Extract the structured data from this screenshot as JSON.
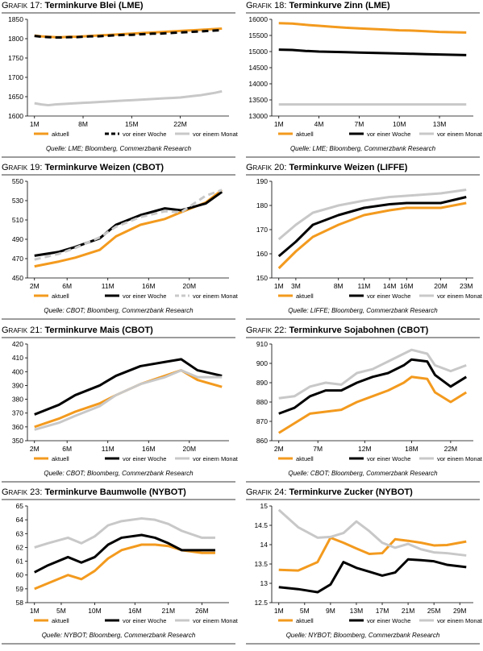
{
  "panels": [
    {
      "label": "Grafik 17:",
      "title": "Terminkurve Blei (LME)",
      "source": "Quelle: LME; Bloomberg, Commerzbank Research",
      "chart_data": {
        "type": "line",
        "ylim": [
          1600,
          1850
        ],
        "yticks": [
          1600,
          1650,
          1700,
          1750,
          1800,
          1850
        ],
        "xlim": [
          0,
          27
        ],
        "xticks": [
          0,
          7,
          14,
          21
        ],
        "xticklabels": [
          "1M",
          "8M",
          "15M",
          "22M"
        ],
        "x": [
          0,
          1,
          2,
          3,
          4,
          5,
          6,
          7,
          8,
          9,
          10,
          11,
          12,
          13,
          14,
          15,
          16,
          17,
          18,
          19,
          20,
          21,
          22,
          23,
          24,
          25,
          26,
          27
        ],
        "series": [
          {
            "name": "aktuell",
            "color": "#f39a1e",
            "dash": "none",
            "values": [
              1808,
              1806,
              1805,
              1804,
              1804,
              1805,
              1805,
              1806,
              1807,
              1808,
              1809,
              1810,
              1811,
              1812,
              1813,
              1814,
              1815,
              1816,
              1817,
              1818,
              1819,
              1820,
              1821,
              1822,
              1823,
              1824,
              1825,
              1826
            ]
          },
          {
            "name": "vor einer Woche",
            "color": "#000000",
            "dash": "8,5",
            "values": [
              1807,
              1805,
              1804,
              1803,
              1803,
              1804,
              1804,
              1805,
              1806,
              1806,
              1807,
              1808,
              1809,
              1810,
              1810,
              1811,
              1812,
              1813,
              1813,
              1814,
              1815,
              1816,
              1817,
              1818,
              1819,
              1820,
              1821,
              1822
            ]
          },
          {
            "name": "vor einem Monat",
            "color": "#c8c8c8",
            "dash": "none",
            "values": [
              1633,
              1630,
              1628,
              1630,
              1631,
              1632,
              1633,
              1634,
              1635,
              1636,
              1637,
              1638,
              1639,
              1640,
              1641,
              1642,
              1643,
              1644,
              1645,
              1646,
              1647,
              1648,
              1650,
              1652,
              1654,
              1657,
              1660,
              1664
            ]
          }
        ]
      }
    },
    {
      "label": "Grafik 18:",
      "title": "Terminkurve Zinn (LME)",
      "source": "Quelle: LME; Bloomberg, Commerzbank Research",
      "chart_data": {
        "type": "line",
        "ylim": [
          13000,
          16000
        ],
        "yticks": [
          13000,
          13500,
          14000,
          14500,
          15000,
          15500,
          16000
        ],
        "xlim": [
          0,
          14
        ],
        "xticks": [
          0,
          3,
          6,
          9,
          12
        ],
        "xticklabels": [
          "1M",
          "4M",
          "7M",
          "10M",
          "13M"
        ],
        "x": [
          0,
          1,
          2,
          3,
          4,
          5,
          6,
          7,
          8,
          9,
          10,
          11,
          12,
          13,
          14
        ],
        "series": [
          {
            "name": "aktuell",
            "color": "#f39a1e",
            "dash": "none",
            "values": [
              15880,
              15870,
              15830,
              15800,
              15770,
              15740,
              15720,
              15700,
              15680,
              15660,
              15650,
              15630,
              15610,
              15600,
              15590
            ]
          },
          {
            "name": "vor einer Woche",
            "color": "#000000",
            "dash": "none",
            "values": [
              15060,
              15050,
              15020,
              15000,
              14990,
              14980,
              14970,
              14960,
              14950,
              14940,
              14930,
              14920,
              14910,
              14900,
              14890
            ]
          },
          {
            "name": "vor einem Monat",
            "color": "#c8c8c8",
            "dash": "none",
            "values": [
              13360,
              13360,
              13360,
              13360,
              13360,
              13360,
              13360,
              13360,
              13360,
              13360,
              13360,
              13360,
              13360,
              13360,
              13360
            ]
          }
        ]
      }
    },
    {
      "label": "Grafik 19:",
      "title": "Terminkurve Weizen (CBOT)",
      "source": "Quelle: CBOT; Bloomberg, Commerzbank Research",
      "chart_data": {
        "type": "line",
        "ylim": [
          450,
          550
        ],
        "yticks": [
          450,
          470,
          490,
          510,
          530,
          550
        ],
        "xlim": [
          0,
          23
        ],
        "xticks": [
          0,
          4,
          9,
          14,
          19
        ],
        "xticklabels": [
          "2M",
          "6M",
          "11M",
          "16M",
          "20M"
        ],
        "x": [
          0,
          3,
          5,
          8,
          10,
          13,
          16,
          18,
          21,
          23
        ],
        "series": [
          {
            "name": "aktuell",
            "color": "#f39a1e",
            "dash": "none",
            "values": [
              462,
              467,
              471,
              479,
              493,
              505,
              511,
              518,
              528,
              541
            ]
          },
          {
            "name": "vor einer Woche",
            "color": "#000000",
            "dash": "none",
            "values": [
              473,
              477,
              482,
              491,
              505,
              515,
              522,
              520,
              527,
              539
            ]
          },
          {
            "name": "vor einem Monat",
            "color": "#c8c8c8",
            "dash": "8,5",
            "values": [
              469,
              475,
              481,
              492,
              503,
              513,
              519,
              518,
              535,
              541
            ]
          }
        ]
      }
    },
    {
      "label": "Grafik 20:",
      "title": "Terminkurve Weizen (LIFFE)",
      "source": "Quelle: LIFFE; Bloomberg, Commerzbank Research",
      "chart_data": {
        "type": "line",
        "ylim": [
          150,
          190
        ],
        "yticks": [
          150,
          160,
          170,
          180,
          190
        ],
        "xlim": [
          0,
          22
        ],
        "xticks": [
          0,
          2,
          7,
          10,
          13,
          15,
          19,
          22
        ],
        "xticklabels": [
          "1M",
          "3M",
          "8M",
          "11M",
          "14M",
          "16M",
          "20M",
          "23M"
        ],
        "x": [
          0,
          2,
          4,
          7,
          10,
          13,
          15,
          19,
          22
        ],
        "series": [
          {
            "name": "aktuell",
            "color": "#f39a1e",
            "dash": "none",
            "values": [
              154,
              161,
              167,
              172,
              176,
              178,
              179,
              179,
              181
            ]
          },
          {
            "name": "vor einer Woche",
            "color": "#000000",
            "dash": "none",
            "values": [
              159,
              165,
              172,
              176,
              179,
              180.5,
              181,
              181,
              183.5
            ]
          },
          {
            "name": "vor einem Monat",
            "color": "#c8c8c8",
            "dash": "none",
            "values": [
              166,
              172,
              177,
              180,
              182,
              183.5,
              184,
              185,
              186.5
            ]
          }
        ]
      }
    },
    {
      "label": "Grafik 21:",
      "title": "Terminkurve Mais (CBOT)",
      "source": "Quelle: CBOT; Bloomberg, Commerzbank Research",
      "chart_data": {
        "type": "line",
        "ylim": [
          350,
          420
        ],
        "yticks": [
          350,
          360,
          370,
          380,
          390,
          400,
          410,
          420
        ],
        "xlim": [
          0,
          23
        ],
        "xticks": [
          0,
          4,
          9,
          14,
          19
        ],
        "xticklabels": [
          "2M",
          "6M",
          "11M",
          "16M",
          "20M"
        ],
        "x": [
          0,
          3,
          5,
          8,
          10,
          13,
          16,
          18,
          20,
          23
        ],
        "series": [
          {
            "name": "aktuell",
            "color": "#f39a1e",
            "dash": "none",
            "values": [
              360,
              366,
              371,
              377,
              383,
              391,
              397,
              401,
              394,
              389
            ]
          },
          {
            "name": "vor einer Woche",
            "color": "#000000",
            "dash": "none",
            "values": [
              369,
              376,
              383,
              390,
              397,
              404,
              407,
              409,
              401,
              397
            ]
          },
          {
            "name": "vor einem Monat",
            "color": "#c8c8c8",
            "dash": "none",
            "values": [
              358,
              363,
              368,
              375,
              383,
              391,
              396,
              401,
              396,
              396
            ]
          }
        ]
      }
    },
    {
      "label": "Grafik 22:",
      "title": "Terminkurve Sojabohnen (CBOT)",
      "source": "Quelle: CBOT; Bloomberg, Commerzbank Research",
      "chart_data": {
        "type": "line",
        "ylim": [
          860,
          910
        ],
        "yticks": [
          860,
          870,
          880,
          890,
          900,
          910
        ],
        "xlim": [
          0,
          24
        ],
        "xticks": [
          0,
          5,
          11,
          17,
          22
        ],
        "xticklabels": [
          "2M",
          "7M",
          "12M",
          "18M",
          "22M"
        ],
        "x": [
          0,
          2,
          4,
          6,
          8,
          10,
          12,
          14,
          16,
          17,
          19,
          20,
          22,
          24
        ],
        "series": [
          {
            "name": "aktuell",
            "color": "#f39a1e",
            "dash": "none",
            "values": [
              864,
              869,
              874,
              875,
              876,
              880,
              883,
              886,
              890,
              893,
              892,
              885,
              880,
              885
            ]
          },
          {
            "name": "vor einer Woche",
            "color": "#000000",
            "dash": "none",
            "values": [
              874,
              877,
              883,
              886,
              886,
              890,
              893,
              895,
              899,
              902,
              901,
              894,
              888,
              893
            ]
          },
          {
            "name": "vor einem Monat",
            "color": "#c8c8c8",
            "dash": "none",
            "values": [
              882,
              883,
              888,
              890,
              889,
              895,
              897,
              901,
              905,
              907,
              905,
              899,
              896,
              899
            ]
          }
        ]
      }
    },
    {
      "label": "Grafik 23:",
      "title": "Terminkurve Baumwolle (NYBOT)",
      "source": "Quelle: NYBOT; Bloomberg, Commerzbank Research",
      "chart_data": {
        "type": "line",
        "ylim": [
          58,
          65
        ],
        "yticks": [
          58,
          59,
          60,
          61,
          62,
          63,
          64,
          65
        ],
        "xlim": [
          0,
          28
        ],
        "xticks": [
          0,
          4,
          9,
          15,
          20,
          25
        ],
        "xticklabels": [
          "1M",
          "5M",
          "10M",
          "16M",
          "21M",
          "26M"
        ],
        "x": [
          0,
          2,
          5,
          7,
          9,
          11,
          13,
          16,
          18,
          20,
          22,
          25,
          27
        ],
        "series": [
          {
            "name": "aktuell",
            "color": "#f39a1e",
            "dash": "none",
            "values": [
              59,
              59.4,
              60,
              59.7,
              60.3,
              61.2,
              61.8,
              62.2,
              62.2,
              62.1,
              61.8,
              61.6,
              61.6
            ]
          },
          {
            "name": "vor einer Woche",
            "color": "#000000",
            "dash": "none",
            "values": [
              60.2,
              60.7,
              61.3,
              60.9,
              61.3,
              62.2,
              62.7,
              62.9,
              62.7,
              62.3,
              61.8,
              61.8,
              61.8
            ]
          },
          {
            "name": "vor einem Monat",
            "color": "#c8c8c8",
            "dash": "none",
            "values": [
              62,
              62.3,
              62.7,
              62.3,
              62.8,
              63.6,
              63.9,
              64.1,
              64,
              63.7,
              63.2,
              62.7,
              62.7
            ]
          }
        ]
      }
    },
    {
      "label": "Grafik 24:",
      "title": "Terminkurve Zucker (NYBOT)",
      "source": "Quelle: NYBOT; Bloomberg, Commerzbank Research",
      "chart_data": {
        "type": "line",
        "ylim": [
          12.5,
          15.0
        ],
        "yticks": [
          12.5,
          13.0,
          13.5,
          14.0,
          14.5,
          15.0
        ],
        "xlim": [
          0,
          29
        ],
        "xticks": [
          0,
          4,
          8,
          12,
          16,
          20,
          24,
          28
        ],
        "xticklabels": [
          "1M",
          "5M",
          "9M",
          "13M",
          "17M",
          "21M",
          "25M",
          "29M"
        ],
        "x": [
          0,
          3,
          6,
          8,
          10,
          12,
          14,
          16,
          18,
          20,
          22,
          24,
          26,
          29
        ],
        "series": [
          {
            "name": "aktuell",
            "color": "#f39a1e",
            "dash": "none",
            "values": [
              13.35,
              13.33,
              13.55,
              14.18,
              14.05,
              13.9,
              13.76,
              13.78,
              14.14,
              14.1,
              14.05,
              13.98,
              13.99,
              14.08
            ]
          },
          {
            "name": "vor einer Woche",
            "color": "#000000",
            "dash": "none",
            "values": [
              12.9,
              12.85,
              12.77,
              12.97,
              13.55,
              13.4,
              13.3,
              13.2,
              13.28,
              13.62,
              13.6,
              13.57,
              13.48,
              13.42
            ]
          },
          {
            "name": "vor einem Monat",
            "color": "#c8c8c8",
            "dash": "none",
            "values": [
              14.9,
              14.45,
              14.18,
              14.2,
              14.3,
              14.6,
              14.35,
              14.05,
              13.92,
              14.02,
              13.88,
              13.8,
              13.78,
              13.72
            ]
          }
        ]
      }
    }
  ]
}
